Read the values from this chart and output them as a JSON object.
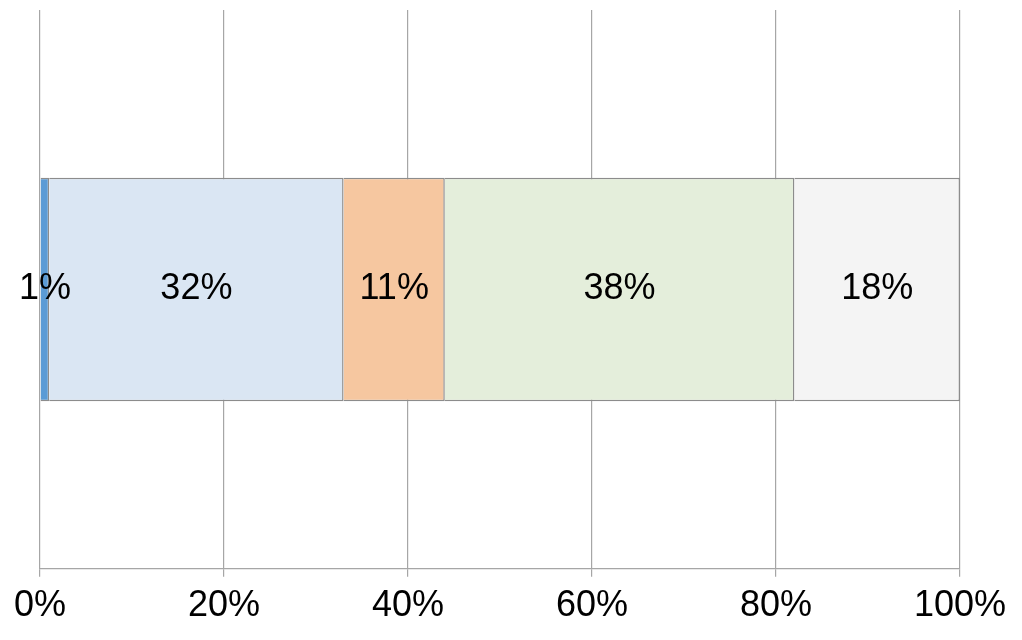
{
  "chart_data": {
    "type": "bar",
    "orientation": "horizontal",
    "stacked": true,
    "categories": [
      null
    ],
    "series": [
      {
        "color": "#5b9bd5",
        "values": [
          1
        ],
        "value_labels": [
          "1%"
        ]
      },
      {
        "color": "#dae6f3",
        "values": [
          32
        ],
        "value_labels": [
          "32%"
        ]
      },
      {
        "color": "#f6c7a0",
        "values": [
          11
        ],
        "value_labels": [
          "11%"
        ]
      },
      {
        "color": "#e4eedb",
        "values": [
          38
        ],
        "value_labels": [
          "38%"
        ]
      },
      {
        "color": "#f4f4f4",
        "values": [
          18
        ],
        "value_labels": [
          "18%"
        ]
      }
    ],
    "xlim": [
      0,
      100
    ],
    "xticks": [
      {
        "value": 0,
        "label": "0%"
      },
      {
        "value": 20,
        "label": "20%"
      },
      {
        "value": 40,
        "label": "40%"
      },
      {
        "value": 60,
        "label": "60%"
      },
      {
        "value": 80,
        "label": "80%"
      },
      {
        "value": 100,
        "label": "100%"
      }
    ],
    "grid": "x",
    "legend": false
  }
}
